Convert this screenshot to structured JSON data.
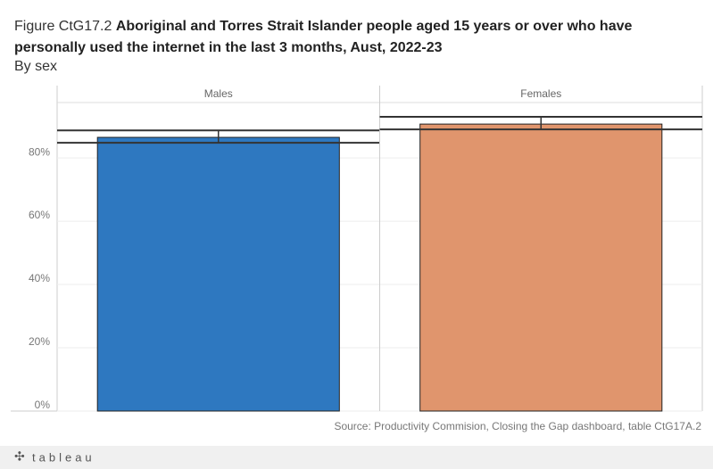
{
  "chart_data": {
    "type": "bar",
    "title_prefix": "Figure CtG17.2",
    "title": "Aboriginal and Torres Strait Islander people aged 15 years or over who have personally used the internet in the last 3 months, Aust, 2022-23",
    "subtitle": "By sex",
    "categories": [
      "Males",
      "Females"
    ],
    "values": [
      86.5,
      90.7
    ],
    "error_low": [
      84.8,
      89.0
    ],
    "error_high": [
      88.7,
      93.0
    ],
    "colors": [
      "#2e78c0",
      "#e0956d"
    ],
    "ylim": [
      0,
      97.5
    ],
    "yticks": [
      {
        "value": 0,
        "label": "0%"
      },
      {
        "value": 20,
        "label": "20%"
      },
      {
        "value": 40,
        "label": "40%"
      },
      {
        "value": 60,
        "label": "60%"
      },
      {
        "value": 80,
        "label": "80%"
      }
    ],
    "grid": true,
    "source": "Source: Productivity Commision, Closing the Gap dashboard, table CtG17A.2"
  },
  "footer": {
    "brand": "tableau"
  }
}
